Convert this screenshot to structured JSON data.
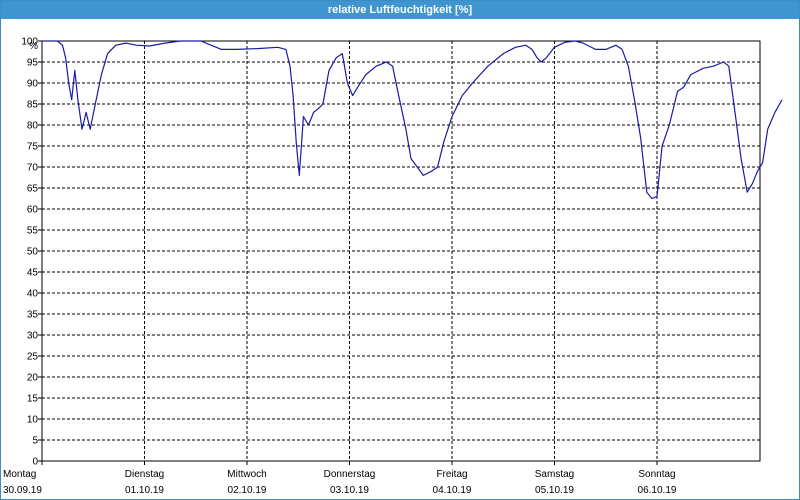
{
  "window": {
    "title": "relative Luftfeuchtigkeit [%]"
  },
  "colors": {
    "title_bar": "#3f95cf",
    "line": "#1a1aa6",
    "grid": "#000000"
  },
  "chart_data": {
    "type": "line",
    "title": "relative Luftfeuchtigkeit [%]",
    "ylabel": "%",
    "xlabel": "",
    "ylim": [
      0,
      100
    ],
    "yticks": [
      0,
      5,
      10,
      15,
      20,
      25,
      30,
      35,
      40,
      45,
      50,
      55,
      60,
      65,
      70,
      75,
      80,
      85,
      90,
      95,
      100
    ],
    "xlim": [
      0,
      7
    ],
    "grid": true,
    "x_unit": "days",
    "day_labels": [
      {
        "day": "Montag",
        "date": "30.09.19"
      },
      {
        "day": "Dienstag",
        "date": "01.10.19"
      },
      {
        "day": "Mittwoch",
        "date": "02.10.19"
      },
      {
        "day": "Donnerstag",
        "date": "03.10.19"
      },
      {
        "day": "Freitag",
        "date": "04.10.19"
      },
      {
        "day": "Samstag",
        "date": "05.10.19"
      },
      {
        "day": "Sonntag",
        "date": "06.10.19"
      }
    ],
    "series": [
      {
        "name": "",
        "points": [
          [
            0.0,
            100
          ],
          [
            0.15,
            100
          ],
          [
            0.2,
            99
          ],
          [
            0.23,
            96
          ],
          [
            0.26,
            90
          ],
          [
            0.29,
            86
          ],
          [
            0.32,
            93
          ],
          [
            0.35,
            86
          ],
          [
            0.39,
            79
          ],
          [
            0.43,
            83
          ],
          [
            0.47,
            79
          ],
          [
            0.52,
            85
          ],
          [
            0.58,
            92
          ],
          [
            0.64,
            97
          ],
          [
            0.72,
            99
          ],
          [
            0.82,
            99.5
          ],
          [
            0.92,
            99
          ],
          [
            1.05,
            98.8
          ],
          [
            1.2,
            99.5
          ],
          [
            1.35,
            100
          ],
          [
            1.55,
            100
          ],
          [
            1.65,
            99
          ],
          [
            1.75,
            98
          ],
          [
            1.9,
            98
          ],
          [
            2.1,
            98.2
          ],
          [
            2.3,
            98.5
          ],
          [
            2.38,
            98
          ],
          [
            2.42,
            94
          ],
          [
            2.45,
            87
          ],
          [
            2.48,
            76
          ],
          [
            2.51,
            68
          ],
          [
            2.55,
            82
          ],
          [
            2.6,
            80
          ],
          [
            2.65,
            83
          ],
          [
            2.7,
            84
          ],
          [
            2.74,
            85
          ],
          [
            2.8,
            93
          ],
          [
            2.87,
            96
          ],
          [
            2.93,
            97
          ],
          [
            2.98,
            90
          ],
          [
            3.03,
            87
          ],
          [
            3.08,
            89
          ],
          [
            3.16,
            92
          ],
          [
            3.26,
            94
          ],
          [
            3.36,
            95
          ],
          [
            3.42,
            94
          ],
          [
            3.48,
            87
          ],
          [
            3.55,
            79
          ],
          [
            3.6,
            72
          ],
          [
            3.66,
            70
          ],
          [
            3.72,
            68
          ],
          [
            3.8,
            69
          ],
          [
            3.86,
            70
          ],
          [
            3.92,
            76
          ],
          [
            4.0,
            82
          ],
          [
            4.1,
            87
          ],
          [
            4.2,
            90
          ],
          [
            4.35,
            94
          ],
          [
            4.5,
            97
          ],
          [
            4.62,
            98.5
          ],
          [
            4.72,
            99
          ],
          [
            4.78,
            98
          ],
          [
            4.83,
            96
          ],
          [
            4.87,
            95
          ],
          [
            4.92,
            96
          ],
          [
            5.0,
            98.5
          ],
          [
            5.1,
            99.7
          ],
          [
            5.2,
            100
          ],
          [
            5.28,
            99.5
          ],
          [
            5.4,
            98
          ],
          [
            5.5,
            98
          ],
          [
            5.6,
            99
          ],
          [
            5.66,
            98
          ],
          [
            5.72,
            94
          ],
          [
            5.78,
            86
          ],
          [
            5.84,
            77
          ],
          [
            5.9,
            64
          ],
          [
            5.95,
            62.5
          ],
          [
            6.0,
            63
          ],
          [
            6.05,
            75
          ],
          [
            6.12,
            80
          ],
          [
            6.2,
            88
          ],
          [
            6.26,
            89
          ],
          [
            6.33,
            92
          ],
          [
            6.45,
            93.5
          ],
          [
            6.55,
            94
          ],
          [
            6.65,
            95
          ],
          [
            6.7,
            94
          ],
          [
            6.75,
            85
          ],
          [
            6.82,
            72
          ],
          [
            6.88,
            64
          ],
          [
            6.93,
            66
          ],
          [
            6.98,
            69
          ],
          [
            7.03,
            71
          ],
          [
            7.08,
            79
          ],
          [
            7.15,
            83
          ],
          [
            7.22,
            86
          ]
        ]
      }
    ]
  }
}
